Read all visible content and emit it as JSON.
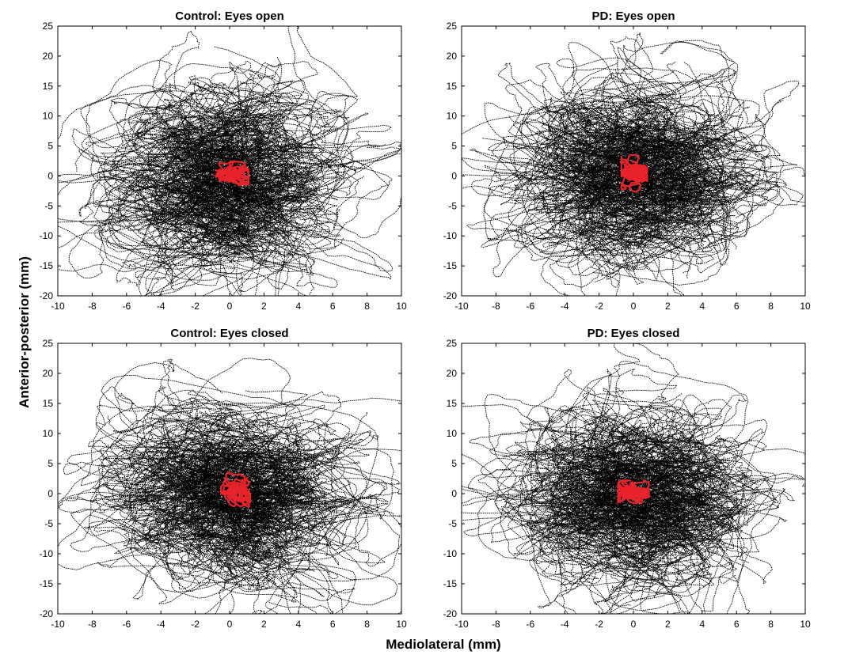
{
  "figure": {
    "xlabel": "Mediolateral (mm)",
    "ylabel": "Anterior-posterior (mm)"
  },
  "chart_data": [
    {
      "type": "scatter",
      "title": "Control: Eyes open",
      "xlim": [
        -10,
        10
      ],
      "ylim": [
        -20,
        25
      ],
      "xticks": [
        -10,
        -8,
        -6,
        -4,
        -2,
        0,
        2,
        4,
        6,
        8,
        10
      ],
      "yticks": [
        -20,
        -15,
        -10,
        -5,
        0,
        5,
        10,
        15,
        20,
        25
      ],
      "grid": false,
      "series": [
        {
          "color": "#000000",
          "style": "dotted trajectories",
          "center": [
            0,
            -1
          ],
          "spread_sd": [
            3.0,
            6.5
          ]
        },
        {
          "color": "#e8242a",
          "style": "solid trajectory",
          "center": [
            -0.2,
            0
          ],
          "spread_range": {
            "x": [
              -0.8,
              1.1
            ],
            "y": [
              -3.2,
              3.8
            ]
          }
        }
      ]
    },
    {
      "type": "scatter",
      "title": "PD: Eyes open",
      "xlim": [
        -10,
        10
      ],
      "ylim": [
        -20,
        25
      ],
      "xticks": [
        -10,
        -8,
        -6,
        -4,
        -2,
        0,
        2,
        4,
        6,
        8,
        10
      ],
      "yticks": [
        -20,
        -15,
        -10,
        -5,
        0,
        5,
        10,
        15,
        20,
        25
      ],
      "grid": false,
      "series": [
        {
          "color": "#000000",
          "style": "dotted trajectories",
          "center": [
            0,
            0
          ],
          "spread_sd": [
            3.0,
            6.5
          ]
        },
        {
          "color": "#e8242a",
          "style": "solid trajectory",
          "center": [
            0,
            0
          ],
          "spread_range": {
            "x": [
              -0.7,
              0.8
            ],
            "y": [
              -3.3,
              3.5
            ]
          }
        }
      ]
    },
    {
      "type": "scatter",
      "title": "Control: Eyes closed",
      "xlim": [
        -10,
        10
      ],
      "ylim": [
        -20,
        25
      ],
      "xticks": [
        -10,
        -8,
        -6,
        -4,
        -2,
        0,
        2,
        4,
        6,
        8,
        10
      ],
      "yticks": [
        -20,
        -15,
        -10,
        -5,
        0,
        5,
        10,
        15,
        20,
        25
      ],
      "grid": false,
      "series": [
        {
          "color": "#000000",
          "style": "dotted trajectories",
          "center": [
            0,
            0
          ],
          "spread_sd": [
            3.2,
            7.0
          ]
        },
        {
          "color": "#e8242a",
          "style": "solid trajectory",
          "center": [
            0,
            0.5
          ],
          "spread_range": {
            "x": [
              -0.5,
              1.2
            ],
            "y": [
              -3.8,
              4.8
            ]
          }
        }
      ]
    },
    {
      "type": "scatter",
      "title": "PD: Eyes closed",
      "xlim": [
        -10,
        10
      ],
      "ylim": [
        -20,
        25
      ],
      "xticks": [
        -10,
        -8,
        -6,
        -4,
        -2,
        0,
        2,
        4,
        6,
        8,
        10
      ],
      "yticks": [
        -20,
        -15,
        -10,
        -5,
        0,
        5,
        10,
        15,
        20,
        25
      ],
      "grid": false,
      "series": [
        {
          "color": "#000000",
          "style": "dotted trajectories",
          "center": [
            0,
            0
          ],
          "spread_sd": [
            3.0,
            6.5
          ]
        },
        {
          "color": "#e8242a",
          "style": "solid trajectory",
          "center": [
            0,
            0
          ],
          "spread_range": {
            "x": [
              -0.9,
              0.9
            ],
            "y": [
              -1.6,
              2.2
            ]
          }
        }
      ]
    }
  ]
}
